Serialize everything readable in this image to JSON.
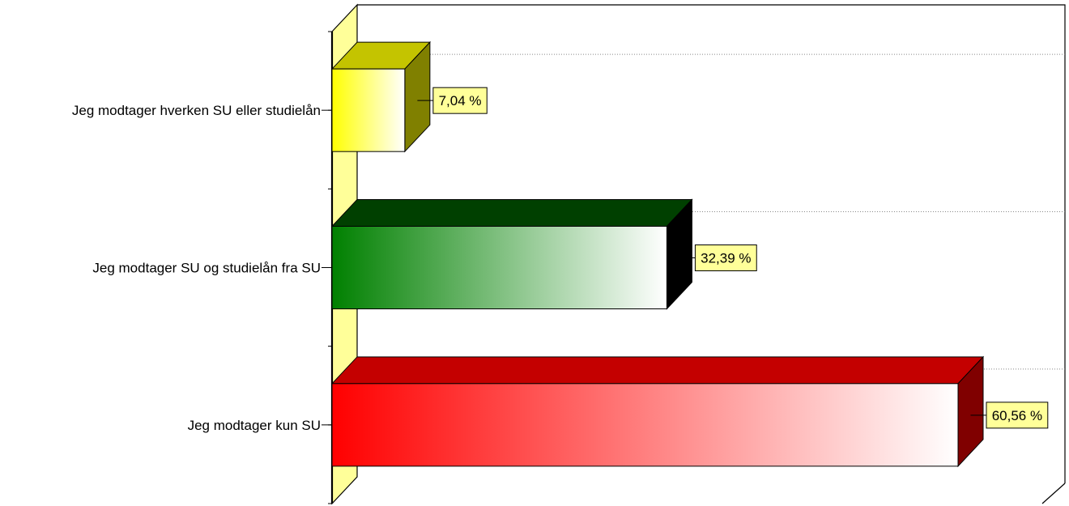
{
  "chart_data": {
    "type": "bar",
    "orientation": "horizontal",
    "three_d": true,
    "title": "",
    "xlabel": "",
    "ylabel": "",
    "categories": [
      "Jeg modtager hverken SU eller studielån",
      "Jeg modtager SU og studielån fra SU",
      "Jeg modtager kun SU"
    ],
    "values": [
      7.04,
      32.39,
      60.56
    ],
    "value_labels": [
      "7,04 %",
      "32,39 %",
      "60,56 %"
    ],
    "unit": "%",
    "xlim": [
      0,
      70
    ],
    "grid": "dotted horizontal lines on back wall",
    "legend": "none",
    "colors": {
      "bars": [
        "#ffff00",
        "#008000",
        "#ff0000"
      ],
      "bar_tops": [
        "#c4c400",
        "#004000",
        "#c40000"
      ],
      "bar_sides": [
        "#808000",
        "#000000",
        "#800000"
      ],
      "side_wall": "#ffff99",
      "label_box": "#ffff99"
    }
  }
}
